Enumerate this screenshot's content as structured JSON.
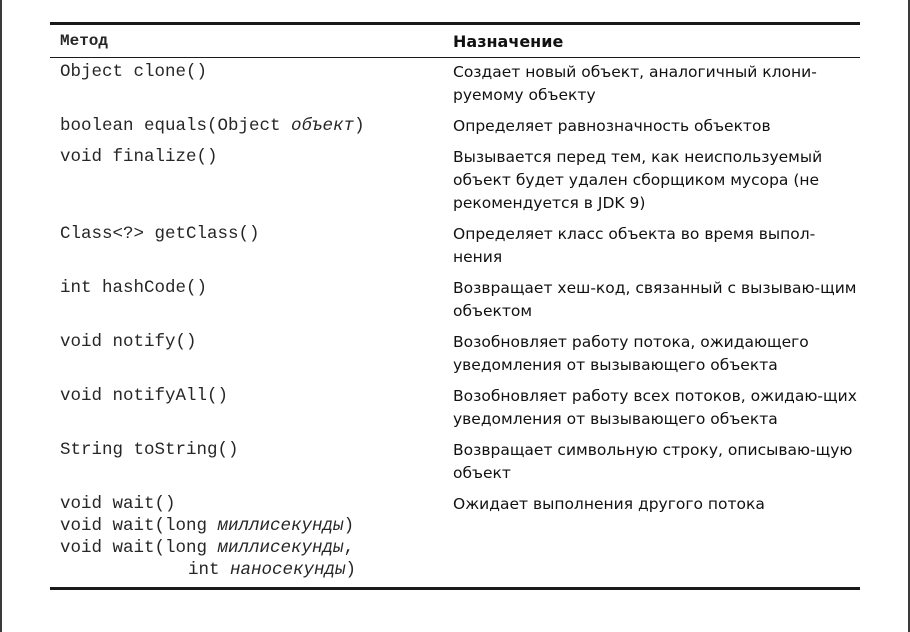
{
  "table": {
    "headers": {
      "method": "Метод",
      "purpose": "Назначение"
    },
    "rows": [
      {
        "method_1": "Object clone()",
        "purpose": "Создает новый объект, аналогичный клони-руемому объекту"
      },
      {
        "method_1_pre": "boolean equals(Object ",
        "method_1_param": "объект",
        "method_1_post": ")",
        "purpose": "Определяет равнозначность объектов"
      },
      {
        "method_1": "void finalize()",
        "purpose": "Вызывается перед тем, как неиспользуемый объект будет удален сборщиком мусора (не рекомендуется в JDK 9)"
      },
      {
        "method_1": "Class<?> getClass()",
        "purpose": "Определяет класс объекта во время выпол-нения"
      },
      {
        "method_1": "int hashCode()",
        "purpose": "Возвращает хеш-код, связанный с вызываю-щим объектом"
      },
      {
        "method_1": "void notify()",
        "purpose": "Возобновляет работу потока, ожидающего уведомления от вызывающего объекта"
      },
      {
        "method_1": "void notifyAll()",
        "purpose": "Возобновляет работу всех потоков, ожидаю-щих уведомления от вызывающего объекта"
      },
      {
        "method_1": "String toString()",
        "purpose": "Возвращает символьную строку, описываю-щую объект"
      },
      {
        "method_1": "void wait()",
        "method_2_pre": "void wait(long ",
        "method_2_param": "миллисекунды",
        "method_2_post": ")",
        "method_3_pre": "void wait(long ",
        "method_3_param": "миллисекунды",
        "method_3_post": ",",
        "method_4_pre": "int ",
        "method_4_param": "наносекунды",
        "method_4_post": ")",
        "purpose": "Ожидает выполнения другого потока"
      }
    ]
  }
}
